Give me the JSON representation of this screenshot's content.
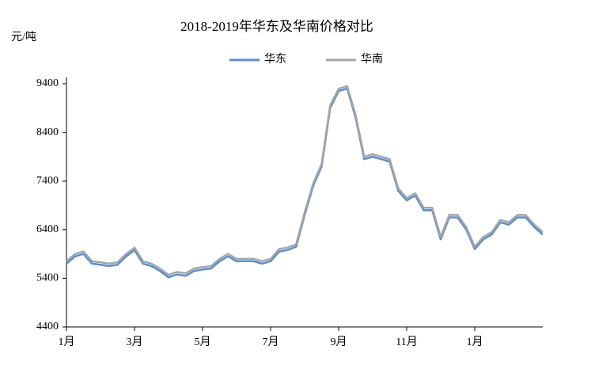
{
  "chart_data": {
    "type": "line",
    "title": "2018-2019年华东及华南价格对比",
    "y_label": "元/吨",
    "x": [
      0,
      0.25,
      0.5,
      0.75,
      1,
      1.25,
      1.5,
      1.75,
      2,
      2.25,
      2.5,
      2.75,
      3,
      3.25,
      3.5,
      3.75,
      4,
      4.25,
      4.5,
      4.75,
      5,
      5.25,
      5.5,
      5.75,
      6,
      6.25,
      6.5,
      6.75,
      7,
      7.25,
      7.5,
      7.75,
      8,
      8.25,
      8.5,
      8.75,
      9,
      9.25,
      9.5,
      9.75,
      10,
      10.25,
      10.5,
      10.75,
      11,
      11.25,
      11.5,
      11.75,
      12,
      12.25,
      12.5,
      12.75,
      13,
      13.25,
      13.5,
      13.75,
      14
    ],
    "series": [
      {
        "name": "华东",
        "color": "#5b8ec9",
        "values": [
          5700,
          5850,
          5900,
          5700,
          5680,
          5650,
          5680,
          5850,
          5980,
          5700,
          5650,
          5550,
          5420,
          5480,
          5450,
          5550,
          5580,
          5600,
          5750,
          5850,
          5750,
          5750,
          5750,
          5700,
          5750,
          5950,
          5980,
          6050,
          6700,
          7300,
          7700,
          8900,
          9250,
          9300,
          8700,
          7850,
          7900,
          7850,
          7800,
          7200,
          7000,
          7100,
          6800,
          6800,
          6200,
          6650,
          6650,
          6400,
          6000,
          6200,
          6300,
          6550,
          6500,
          6650,
          6650,
          6450,
          6300
        ]
      },
      {
        "name": "华南",
        "color": "#a5a5a5",
        "values": [
          5750,
          5900,
          5950,
          5750,
          5730,
          5700,
          5730,
          5900,
          6030,
          5750,
          5700,
          5600,
          5470,
          5530,
          5500,
          5600,
          5630,
          5650,
          5800,
          5900,
          5800,
          5800,
          5800,
          5750,
          5800,
          6000,
          6030,
          6100,
          6750,
          7350,
          7750,
          8950,
          9300,
          9350,
          8750,
          7900,
          7950,
          7900,
          7850,
          7250,
          7050,
          7150,
          6850,
          6850,
          6250,
          6700,
          6700,
          6450,
          6050,
          6250,
          6350,
          6600,
          6550,
          6700,
          6700,
          6500,
          6350
        ]
      }
    ],
    "xlim": [
      0,
      14
    ],
    "xticks": [
      {
        "value": 0,
        "label": "1月"
      },
      {
        "value": 2,
        "label": "3月"
      },
      {
        "value": 4,
        "label": "5月"
      },
      {
        "value": 6,
        "label": "7月"
      },
      {
        "value": 8,
        "label": "9月"
      },
      {
        "value": 10,
        "label": "11月"
      },
      {
        "value": 12,
        "label": "1月"
      }
    ],
    "ylim": [
      4400,
      9400
    ],
    "yticks": [
      4400,
      5400,
      6400,
      7400,
      8400,
      9400
    ]
  }
}
